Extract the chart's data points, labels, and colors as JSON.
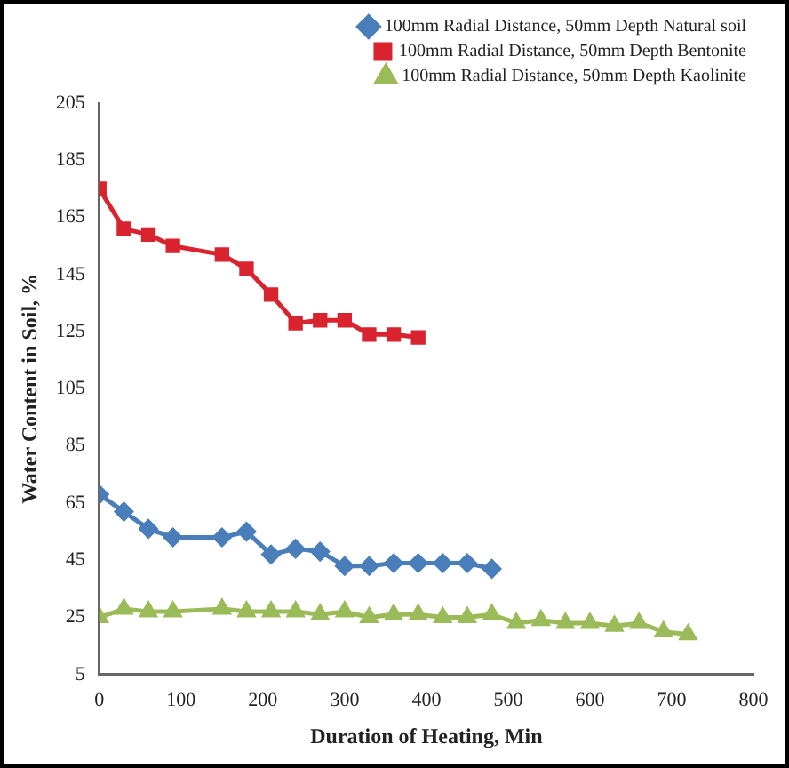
{
  "chart_data": {
    "type": "line",
    "xlabel": "Duration of Heating, Min",
    "ylabel": "Water Content in Soil, %",
    "xlim": [
      0,
      800
    ],
    "xticks": [
      0,
      100,
      200,
      300,
      400,
      500,
      600,
      700,
      800
    ],
    "ylim": [
      5,
      205
    ],
    "yticks": [
      5,
      25,
      45,
      65,
      85,
      105,
      125,
      145,
      165,
      185,
      205
    ],
    "grid": false,
    "legend": "top right",
    "series": [
      {
        "name": "100mm Radial Distance, 50mm Depth Natural soil",
        "color": "#4a7ebb",
        "marker": "diamond",
        "x": [
          0,
          30,
          60,
          90,
          150,
          180,
          210,
          240,
          270,
          300,
          330,
          360,
          390,
          420,
          450,
          480
        ],
        "values": [
          68,
          62,
          56,
          53,
          53,
          55,
          47,
          49,
          48,
          43,
          43,
          44,
          44,
          44,
          44,
          42
        ]
      },
      {
        "name": "100mm Radial Distance, 50mm Depth Bentonite",
        "color": "#d9232e",
        "marker": "square",
        "x": [
          0,
          30,
          60,
          90,
          150,
          180,
          210,
          240,
          270,
          300,
          330,
          360,
          390
        ],
        "values": [
          175,
          161,
          159,
          155,
          152,
          147,
          138,
          128,
          129,
          129,
          124,
          124,
          123
        ]
      },
      {
        "name": "100mm Radial Distance, 50mm Depth Kaolinite",
        "color": "#9bbb59",
        "marker": "triangle",
        "x": [
          0,
          30,
          60,
          90,
          150,
          180,
          210,
          240,
          270,
          300,
          330,
          360,
          390,
          420,
          450,
          480,
          510,
          540,
          570,
          600,
          630,
          660,
          690,
          720
        ],
        "values": [
          25,
          28,
          27,
          27,
          28,
          27,
          27,
          27,
          26,
          27,
          25,
          26,
          26,
          25,
          25,
          26,
          23,
          24,
          23,
          23,
          22,
          23,
          20,
          19
        ]
      }
    ]
  }
}
